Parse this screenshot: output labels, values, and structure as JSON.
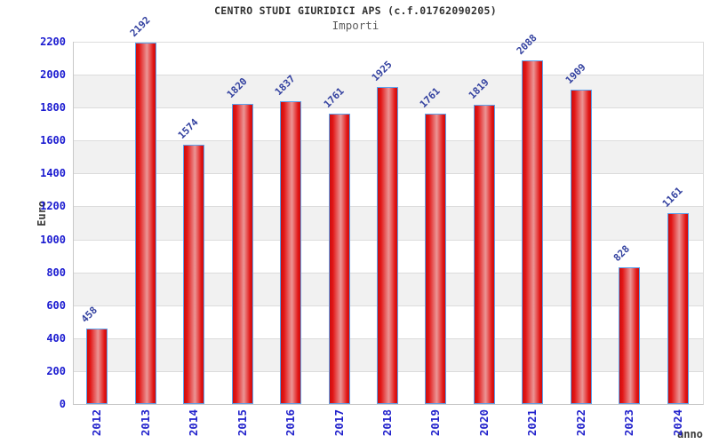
{
  "header": {
    "title": "CENTRO STUDI GIURIDICI APS (c.f.01762090205)",
    "subtitle": "Importi"
  },
  "chart_data": {
    "type": "bar",
    "title": "CENTRO STUDI GIURIDICI APS (c.f.01762090205)",
    "subtitle": "Importi",
    "xlabel": "anno",
    "ylabel": "Euro",
    "categories": [
      "2012",
      "2013",
      "2014",
      "2015",
      "2016",
      "2017",
      "2018",
      "2019",
      "2020",
      "2021",
      "2022",
      "2023",
      "2024"
    ],
    "values": [
      458,
      2192,
      1574,
      1820,
      1837,
      1761,
      1925,
      1761,
      1819,
      2088,
      1909,
      828,
      1161
    ],
    "ylim": [
      0,
      2200
    ],
    "ytick_step": 200,
    "grid": "alternating-horizontal-bands",
    "legend_position": "none",
    "colors": {
      "bar_edge": "#cc0d0d",
      "bar_mid": "#e21616",
      "bar_highlight": "#eb9595",
      "bar_border": "#5da2ec",
      "value_label": "#32409f",
      "tick_label_y": "#1a1ad0",
      "tick_label_x": "#2222cc",
      "band_gray": "#f1f1f1",
      "band_white": "#ffffff",
      "grid_line": "#dcdcdc",
      "title_color": "#303030",
      "subtitle_color": "#5f5f5f",
      "axis_label_color": "#3a3a3a"
    }
  }
}
